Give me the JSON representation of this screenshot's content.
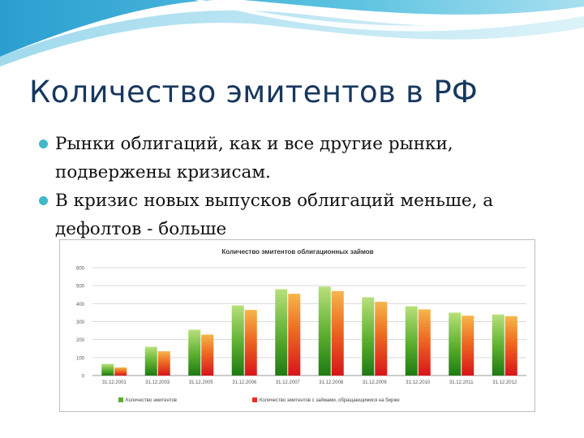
{
  "slide": {
    "title": "Количество эмитентов в РФ",
    "bullets": [
      "Рынки облигаций, как и все другие рынки, подвержены кризисам.",
      "В кризис новых выпусков облигаций меньше, а дефолтов - больше"
    ]
  },
  "colors": {
    "title": "#17375e",
    "bullet": "#3fb8c8",
    "series_green": "#5aae2e",
    "series_red": "#e8321e"
  },
  "chart_data": {
    "type": "bar",
    "title": "Количество эмитентов облигационных займов",
    "categories": [
      "31.12.2001",
      "31.12.2003",
      "31.12.2005",
      "31.12.2006",
      "31.12.2007",
      "31.12.2008",
      "31.12.2009",
      "31.12.2010",
      "31.12.2011",
      "31.12.2012"
    ],
    "series": [
      {
        "name": "Количество эмитентов",
        "color": "#5aae2e",
        "values": [
          65,
          160,
          255,
          390,
          480,
          495,
          435,
          385,
          350,
          340
        ]
      },
      {
        "name": "Количество эмитентов с займами, обращающимися на бирже",
        "color": "#e8321e",
        "values": [
          45,
          135,
          228,
          365,
          455,
          470,
          410,
          368,
          333,
          330
        ]
      }
    ],
    "y_ticks": [
      0,
      100,
      200,
      300,
      400,
      500,
      600
    ],
    "ylim": [
      0,
      600
    ],
    "grid": true,
    "legend_position": "bottom"
  }
}
